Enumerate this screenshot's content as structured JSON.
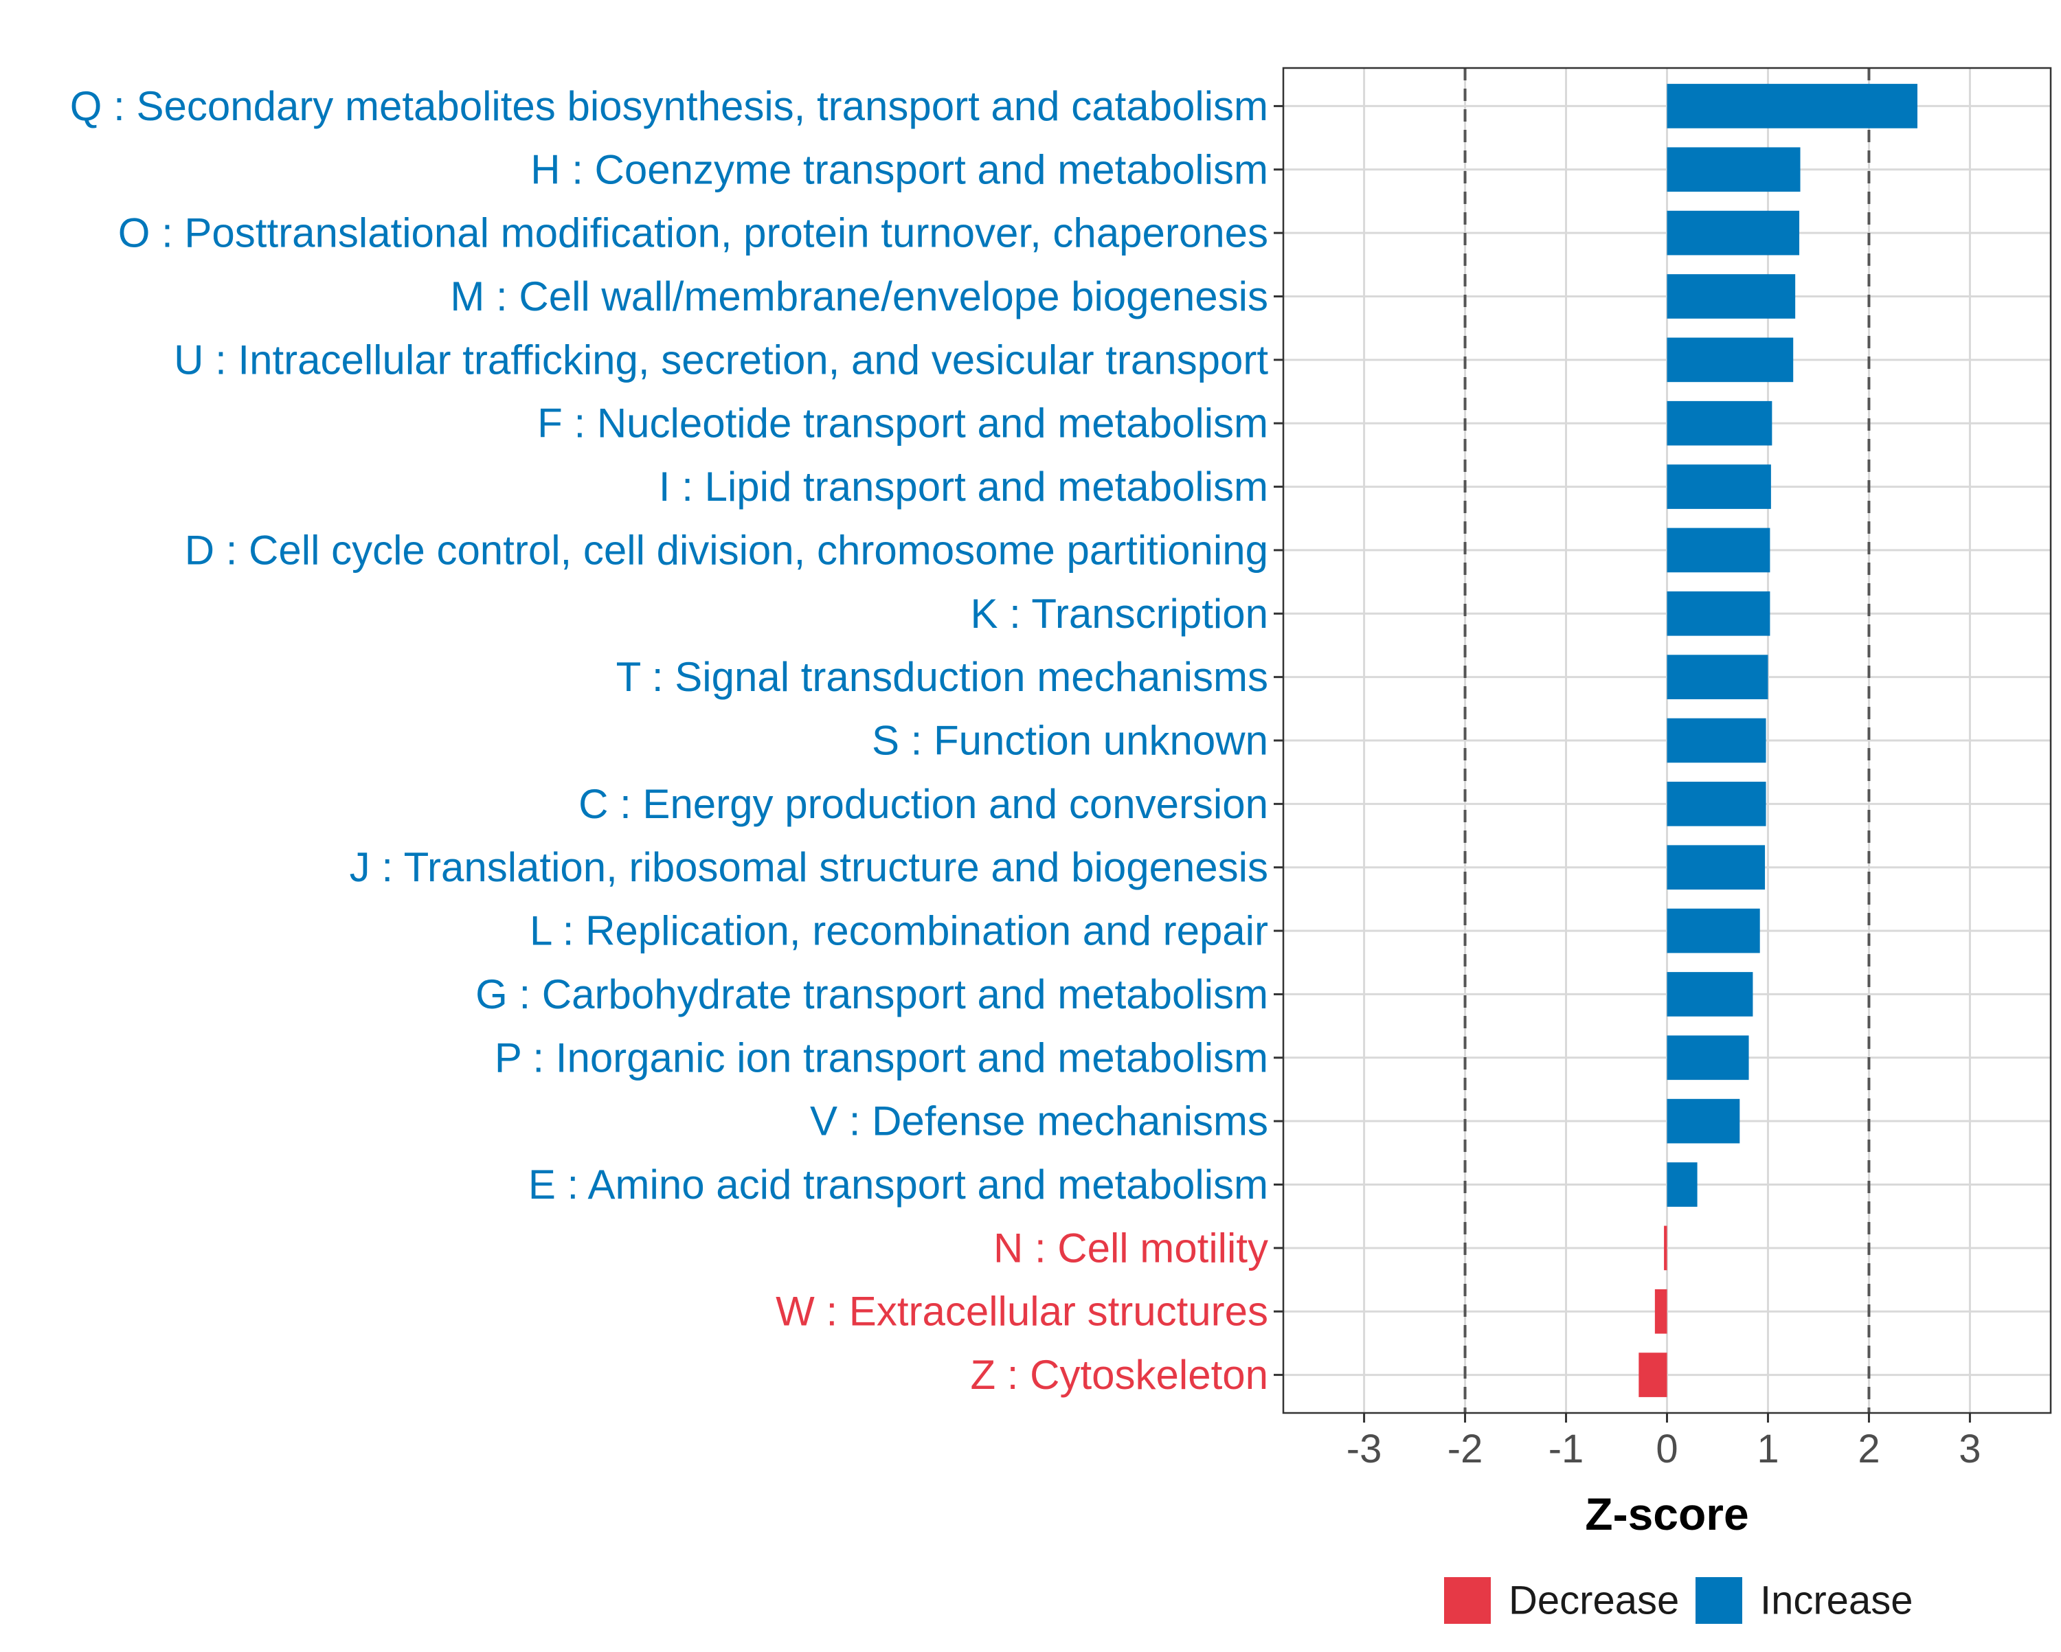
{
  "colors": {
    "increase": "#0077BB",
    "decrease": "#E63946",
    "grid": "#D9D9D9",
    "panel_border": "#333333",
    "threshold_line": "#555555"
  },
  "chart_data": {
    "type": "bar",
    "orientation": "horizontal",
    "title": "",
    "xlabel": "Z-score",
    "ylabel": "",
    "xlim": [
      -3.8,
      3.8
    ],
    "xticks": [
      -3,
      -2,
      -1,
      0,
      1,
      2,
      3
    ],
    "xtick_labels": [
      "-3",
      "-2",
      "-1",
      "0",
      "1",
      "2",
      "3"
    ],
    "threshold_lines": [
      -2,
      2
    ],
    "grid": true,
    "legend": {
      "position": "bottom",
      "items": [
        {
          "label": "Decrease",
          "key": "decrease"
        },
        {
          "label": "Increase",
          "key": "increase"
        }
      ]
    },
    "categories": [
      "Q : Secondary metabolites biosynthesis, transport and catabolism",
      "H : Coenzyme transport and metabolism",
      "O : Posttranslational modification, protein turnover, chaperones",
      "M : Cell wall/membrane/envelope biogenesis",
      "U : Intracellular trafficking, secretion, and vesicular transport",
      "F : Nucleotide transport and metabolism",
      "I : Lipid transport and metabolism",
      "D : Cell cycle control, cell division, chromosome partitioning",
      "K : Transcription",
      "T : Signal transduction mechanisms",
      "S : Function unknown",
      "C : Energy production and conversion",
      "J : Translation, ribosomal structure and biogenesis",
      "L : Replication, recombination and repair",
      "G : Carbohydrate transport and metabolism",
      "P : Inorganic ion transport and metabolism",
      "V : Defense mechanisms",
      "E : Amino acid transport and metabolism",
      "N : Cell motility",
      "W : Extracellular structures",
      "Z : Cytoskeleton"
    ],
    "values": [
      2.48,
      1.32,
      1.31,
      1.27,
      1.25,
      1.04,
      1.03,
      1.02,
      1.02,
      1.0,
      0.98,
      0.98,
      0.97,
      0.92,
      0.85,
      0.81,
      0.72,
      0.3,
      -0.03,
      -0.12,
      -0.28
    ],
    "directions": [
      "increase",
      "increase",
      "increase",
      "increase",
      "increase",
      "increase",
      "increase",
      "increase",
      "increase",
      "increase",
      "increase",
      "increase",
      "increase",
      "increase",
      "increase",
      "increase",
      "increase",
      "increase",
      "decrease",
      "decrease",
      "decrease"
    ]
  }
}
